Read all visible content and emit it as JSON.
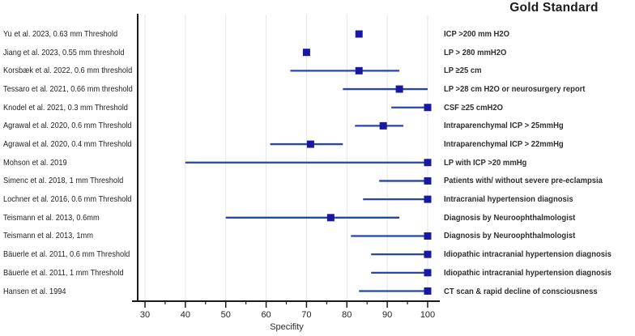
{
  "right_column_header": "Gold Standard",
  "colors": {
    "marker": "#1a18a3",
    "ci_line": "#2547a5",
    "grid": "#e6e6e6",
    "axis": "#1a1a1a",
    "text": "#1f1f1f"
  },
  "chart_data": {
    "type": "forest",
    "title": "",
    "right_header": "Gold Standard",
    "xlabel": "Specifity",
    "xlim": [
      30,
      100
    ],
    "xticks": [
      30,
      40,
      50,
      60,
      70,
      80,
      90,
      100
    ],
    "minor_ticks": [
      35,
      45,
      55,
      65,
      75,
      85,
      95
    ],
    "grid": "vertical-on",
    "legend_position": "none",
    "rows": [
      {
        "study": "Yu et al. 2023, 0.63 mm Threshold",
        "specificity": 83,
        "ci_low": null,
        "ci_high": null,
        "gold_standard": "ICP >200 mm H2O"
      },
      {
        "study": "Jiang et al. 2023, 0.55 mm threshold",
        "specificity": 70,
        "ci_low": null,
        "ci_high": null,
        "gold_standard": "LP > 280 mmH2O"
      },
      {
        "study": "Korsbæk et al. 2022, 0.6 mm threshold",
        "specificity": 83,
        "ci_low": 66,
        "ci_high": 93,
        "gold_standard": "LP  ≥25 cm"
      },
      {
        "study": "Tessaro et al. 2021, 0.66 mm threshold",
        "specificity": 93,
        "ci_low": 79,
        "ci_high": 100,
        "gold_standard": "LP >28 cm H2O or neurosurgery report"
      },
      {
        "study": "Knodel et al. 2021, 0.3 mm Threshold",
        "specificity": 100,
        "ci_low": 91,
        "ci_high": 100,
        "gold_standard": "CSF ≥25 cmH2O"
      },
      {
        "study": "Agrawal et al. 2020, 0.6 mm Threshold",
        "specificity": 89,
        "ci_low": 82,
        "ci_high": 94,
        "gold_standard": "Intraparenchymal ICP > 25mmHg"
      },
      {
        "study": "Agrawal et al. 2020, 0.4 mm Threshold",
        "specificity": 71,
        "ci_low": 61,
        "ci_high": 79,
        "gold_standard": "Intraparenchymal ICP > 22mmHg"
      },
      {
        "study": "Mohson et al. 2019",
        "specificity": 100,
        "ci_low": 40,
        "ci_high": 100,
        "gold_standard": "LP with ICP >20 mmHg"
      },
      {
        "study": "Simenc et al. 2018, 1 mm Threshold",
        "specificity": 100,
        "ci_low": 88,
        "ci_high": 100,
        "gold_standard": "Patients with/ without severe pre-eclampsia"
      },
      {
        "study": "Lochner et al. 2016, 0.6 mm Threshold",
        "specificity": 100,
        "ci_low": 84,
        "ci_high": 100,
        "gold_standard": "Intracranial hypertension diagnosis"
      },
      {
        "study": "Teismann et al. 2013, 0.6mm",
        "specificity": 76,
        "ci_low": 50,
        "ci_high": 93,
        "gold_standard": "Diagnosis by Neuroophthalmologist"
      },
      {
        "study": "Teismann et al. 2013, 1mm",
        "specificity": 100,
        "ci_low": 81,
        "ci_high": 100,
        "gold_standard": "Diagnosis by Neuroophthalmologist"
      },
      {
        "study": "Bäuerle et al. 2011, 0.6 mm Threshold",
        "specificity": 100,
        "ci_low": 86,
        "ci_high": 100,
        "gold_standard": "Idiopathic intracranial hypertension diagnosis"
      },
      {
        "study": "Bäuerle et al. 2011, 1 mm Threshold",
        "specificity": 100,
        "ci_low": 86,
        "ci_high": 100,
        "gold_standard": "Idiopathic intracranial hypertension diagnosis"
      },
      {
        "study": "Hansen et al. 1994",
        "specificity": 100,
        "ci_low": 83,
        "ci_high": 100,
        "gold_standard": "CT scan & rapid decline of consciousness"
      }
    ]
  }
}
